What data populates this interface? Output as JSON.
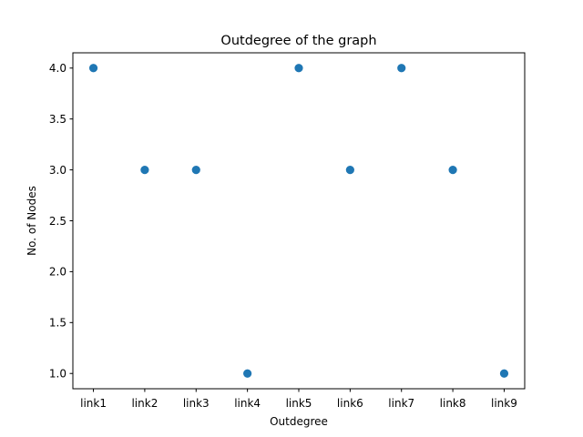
{
  "chart_data": {
    "type": "scatter",
    "title": "Outdegree of the graph",
    "xlabel": "Outdegree",
    "ylabel": "No. of Nodes",
    "categories": [
      "link1",
      "link2",
      "link3",
      "link4",
      "link5",
      "link6",
      "link7",
      "link8",
      "link9"
    ],
    "series": [
      {
        "values": [
          4,
          3,
          3,
          1,
          4,
          3,
          4,
          3,
          1
        ]
      }
    ],
    "ylim": [
      0.85,
      4.15
    ],
    "yticks": [
      "1.0",
      "1.5",
      "2.0",
      "2.5",
      "3.0",
      "3.5",
      "4.0"
    ],
    "grid": false,
    "legend": "none",
    "marker_color": "#1f77b4",
    "axis_color": "#000000"
  }
}
